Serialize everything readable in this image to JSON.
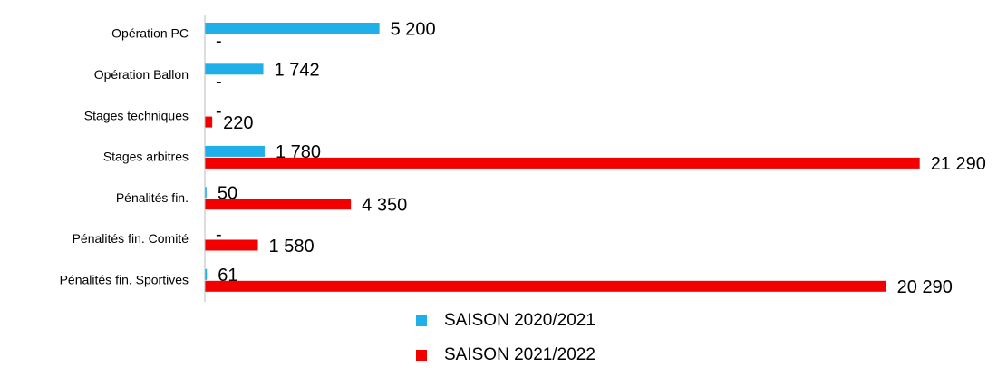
{
  "chart_data": {
    "type": "barh",
    "categories": [
      "Opération PC",
      "Opération Ballon",
      "Stages techniques",
      "Stages arbitres",
      "Pénalités fin.",
      "Pénalités fin. Comité",
      "Pénalités fin. Sportives"
    ],
    "series": [
      {
        "name": "SAISON 2020/2021",
        "color": "#1fb0ea",
        "values": [
          5200,
          1742,
          0,
          1780,
          50,
          0,
          61
        ],
        "value_labels": [
          "5 200",
          "1 742",
          "-",
          "1 780",
          "50",
          "-",
          "61"
        ]
      },
      {
        "name": "SAISON 2021/2022",
        "color": "#f20000",
        "values": [
          0,
          0,
          220,
          21290,
          4350,
          1580,
          20290
        ],
        "value_labels": [
          "-",
          "-",
          "220",
          "21 290",
          "4 350",
          "1 580",
          "20 290"
        ]
      }
    ],
    "xlim": [
      0,
      22000
    ],
    "legend": "bottom"
  }
}
